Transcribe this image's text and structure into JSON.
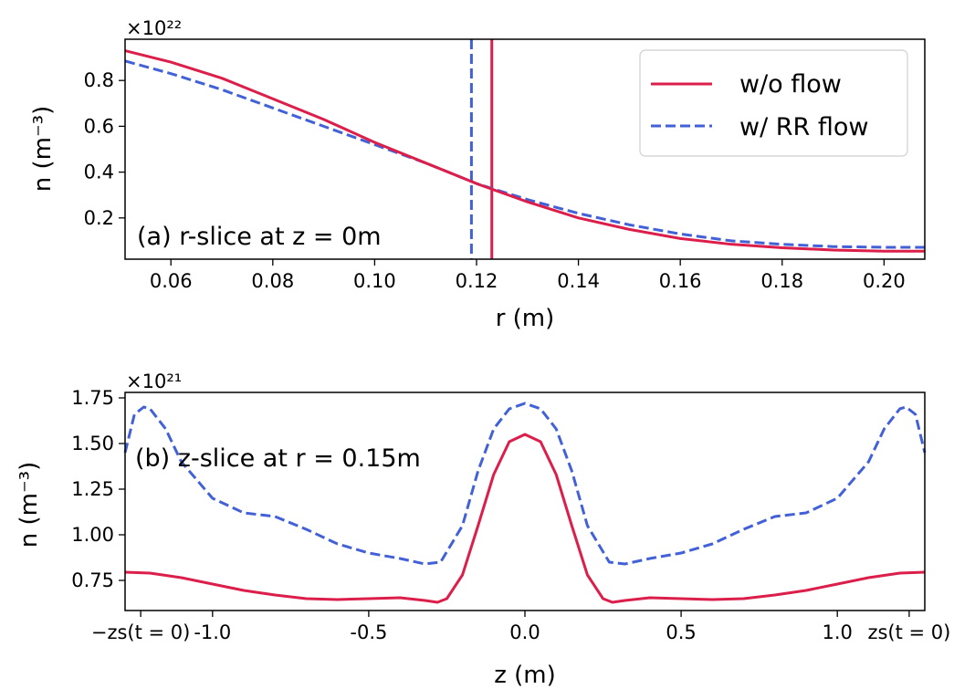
{
  "colors": {
    "wo_flow": "#dc1e4b",
    "rr_flow": "#4361d6"
  },
  "legend": {
    "series": [
      "w/o flow",
      "w/ RR flow"
    ],
    "placement": "upper-right"
  },
  "chart_data": [
    {
      "id": "a",
      "type": "line",
      "annotation": "(a) r-slice at z = 0m",
      "xlabel": "r (m)",
      "ylabel": "n (m⁻³)",
      "yscale_label": "×10²²",
      "xlim": [
        0.051,
        0.208
      ],
      "ylim": [
        0.02,
        0.98
      ],
      "xticks": [
        0.06,
        0.08,
        0.1,
        0.12,
        0.14,
        0.16,
        0.18,
        0.2
      ],
      "xtick_labels": [
        "0.06",
        "0.08",
        "0.10",
        "0.12",
        "0.14",
        "0.16",
        "0.18",
        "0.20"
      ],
      "yticks": [
        0.2,
        0.4,
        0.6,
        0.8
      ],
      "ytick_labels": [
        "0.2",
        "0.4",
        "0.6",
        "0.8"
      ],
      "vlines": [
        {
          "series": "w/ RR flow",
          "x": 0.119
        },
        {
          "series": "w/o flow",
          "x": 0.123
        }
      ],
      "series": [
        {
          "name": "w/o flow",
          "style": "solid",
          "x": [
            0.051,
            0.06,
            0.07,
            0.08,
            0.09,
            0.1,
            0.11,
            0.12,
            0.13,
            0.14,
            0.15,
            0.16,
            0.17,
            0.18,
            0.19,
            0.2,
            0.208
          ],
          "y": [
            0.93,
            0.88,
            0.81,
            0.72,
            0.63,
            0.53,
            0.44,
            0.35,
            0.27,
            0.2,
            0.15,
            0.11,
            0.085,
            0.07,
            0.06,
            0.055,
            0.055
          ]
        },
        {
          "name": "w/ RR flow",
          "style": "dashed",
          "x": [
            0.051,
            0.06,
            0.07,
            0.08,
            0.09,
            0.1,
            0.11,
            0.12,
            0.13,
            0.14,
            0.15,
            0.16,
            0.17,
            0.18,
            0.19,
            0.2,
            0.208
          ],
          "y": [
            0.885,
            0.83,
            0.76,
            0.68,
            0.6,
            0.52,
            0.44,
            0.35,
            0.28,
            0.22,
            0.17,
            0.13,
            0.1,
            0.085,
            0.075,
            0.072,
            0.072
          ]
        }
      ]
    },
    {
      "id": "b",
      "type": "line",
      "annotation": "(b) z-slice at r = 0.15m",
      "xlabel": "z (m)",
      "ylabel": "n (m⁻³)",
      "yscale_label": "×10²¹",
      "xlim": [
        -1.28,
        1.28
      ],
      "ylim": [
        0.585,
        1.78
      ],
      "xticks": [
        -1.23,
        -1.0,
        -0.5,
        0.0,
        0.5,
        1.0,
        1.23
      ],
      "xtick_labels": [
        "−zs(t = 0)",
        "-1.0",
        "-0.5",
        "0.0",
        "0.5",
        "1.0",
        "zs(t = 0)"
      ],
      "yticks": [
        0.75,
        1.0,
        1.25,
        1.5,
        1.75
      ],
      "ytick_labels": [
        "0.75",
        "1.00",
        "1.25",
        "1.50",
        "1.75"
      ],
      "series": [
        {
          "name": "w/o flow",
          "style": "solid",
          "x": [
            -1.28,
            -1.2,
            -1.1,
            -1.0,
            -0.9,
            -0.8,
            -0.7,
            -0.6,
            -0.5,
            -0.4,
            -0.32,
            -0.28,
            -0.25,
            -0.2,
            -0.15,
            -0.1,
            -0.05,
            0.0,
            0.05,
            0.1,
            0.15,
            0.2,
            0.25,
            0.28,
            0.32,
            0.4,
            0.5,
            0.6,
            0.7,
            0.8,
            0.9,
            1.0,
            1.1,
            1.2,
            1.28
          ],
          "y": [
            0.795,
            0.79,
            0.765,
            0.73,
            0.695,
            0.67,
            0.65,
            0.645,
            0.65,
            0.655,
            0.64,
            0.63,
            0.65,
            0.78,
            1.05,
            1.33,
            1.51,
            1.55,
            1.51,
            1.33,
            1.05,
            0.78,
            0.65,
            0.63,
            0.64,
            0.655,
            0.65,
            0.645,
            0.65,
            0.67,
            0.695,
            0.73,
            0.765,
            0.79,
            0.795
          ]
        },
        {
          "name": "w/ RR flow",
          "style": "dashed",
          "x": [
            -1.28,
            -1.25,
            -1.22,
            -1.2,
            -1.15,
            -1.1,
            -1.0,
            -0.9,
            -0.8,
            -0.7,
            -0.6,
            -0.5,
            -0.4,
            -0.32,
            -0.27,
            -0.2,
            -0.15,
            -0.1,
            -0.05,
            0.0,
            0.05,
            0.1,
            0.15,
            0.2,
            0.27,
            0.32,
            0.4,
            0.5,
            0.6,
            0.7,
            0.8,
            0.9,
            1.0,
            1.1,
            1.15,
            1.2,
            1.22,
            1.25,
            1.28
          ],
          "y": [
            1.45,
            1.66,
            1.7,
            1.69,
            1.58,
            1.4,
            1.2,
            1.12,
            1.1,
            1.03,
            0.95,
            0.9,
            0.87,
            0.84,
            0.85,
            1.05,
            1.35,
            1.58,
            1.69,
            1.72,
            1.69,
            1.58,
            1.35,
            1.05,
            0.85,
            0.84,
            0.87,
            0.9,
            0.95,
            1.03,
            1.1,
            1.12,
            1.2,
            1.4,
            1.58,
            1.69,
            1.7,
            1.66,
            1.45
          ]
        }
      ]
    }
  ]
}
